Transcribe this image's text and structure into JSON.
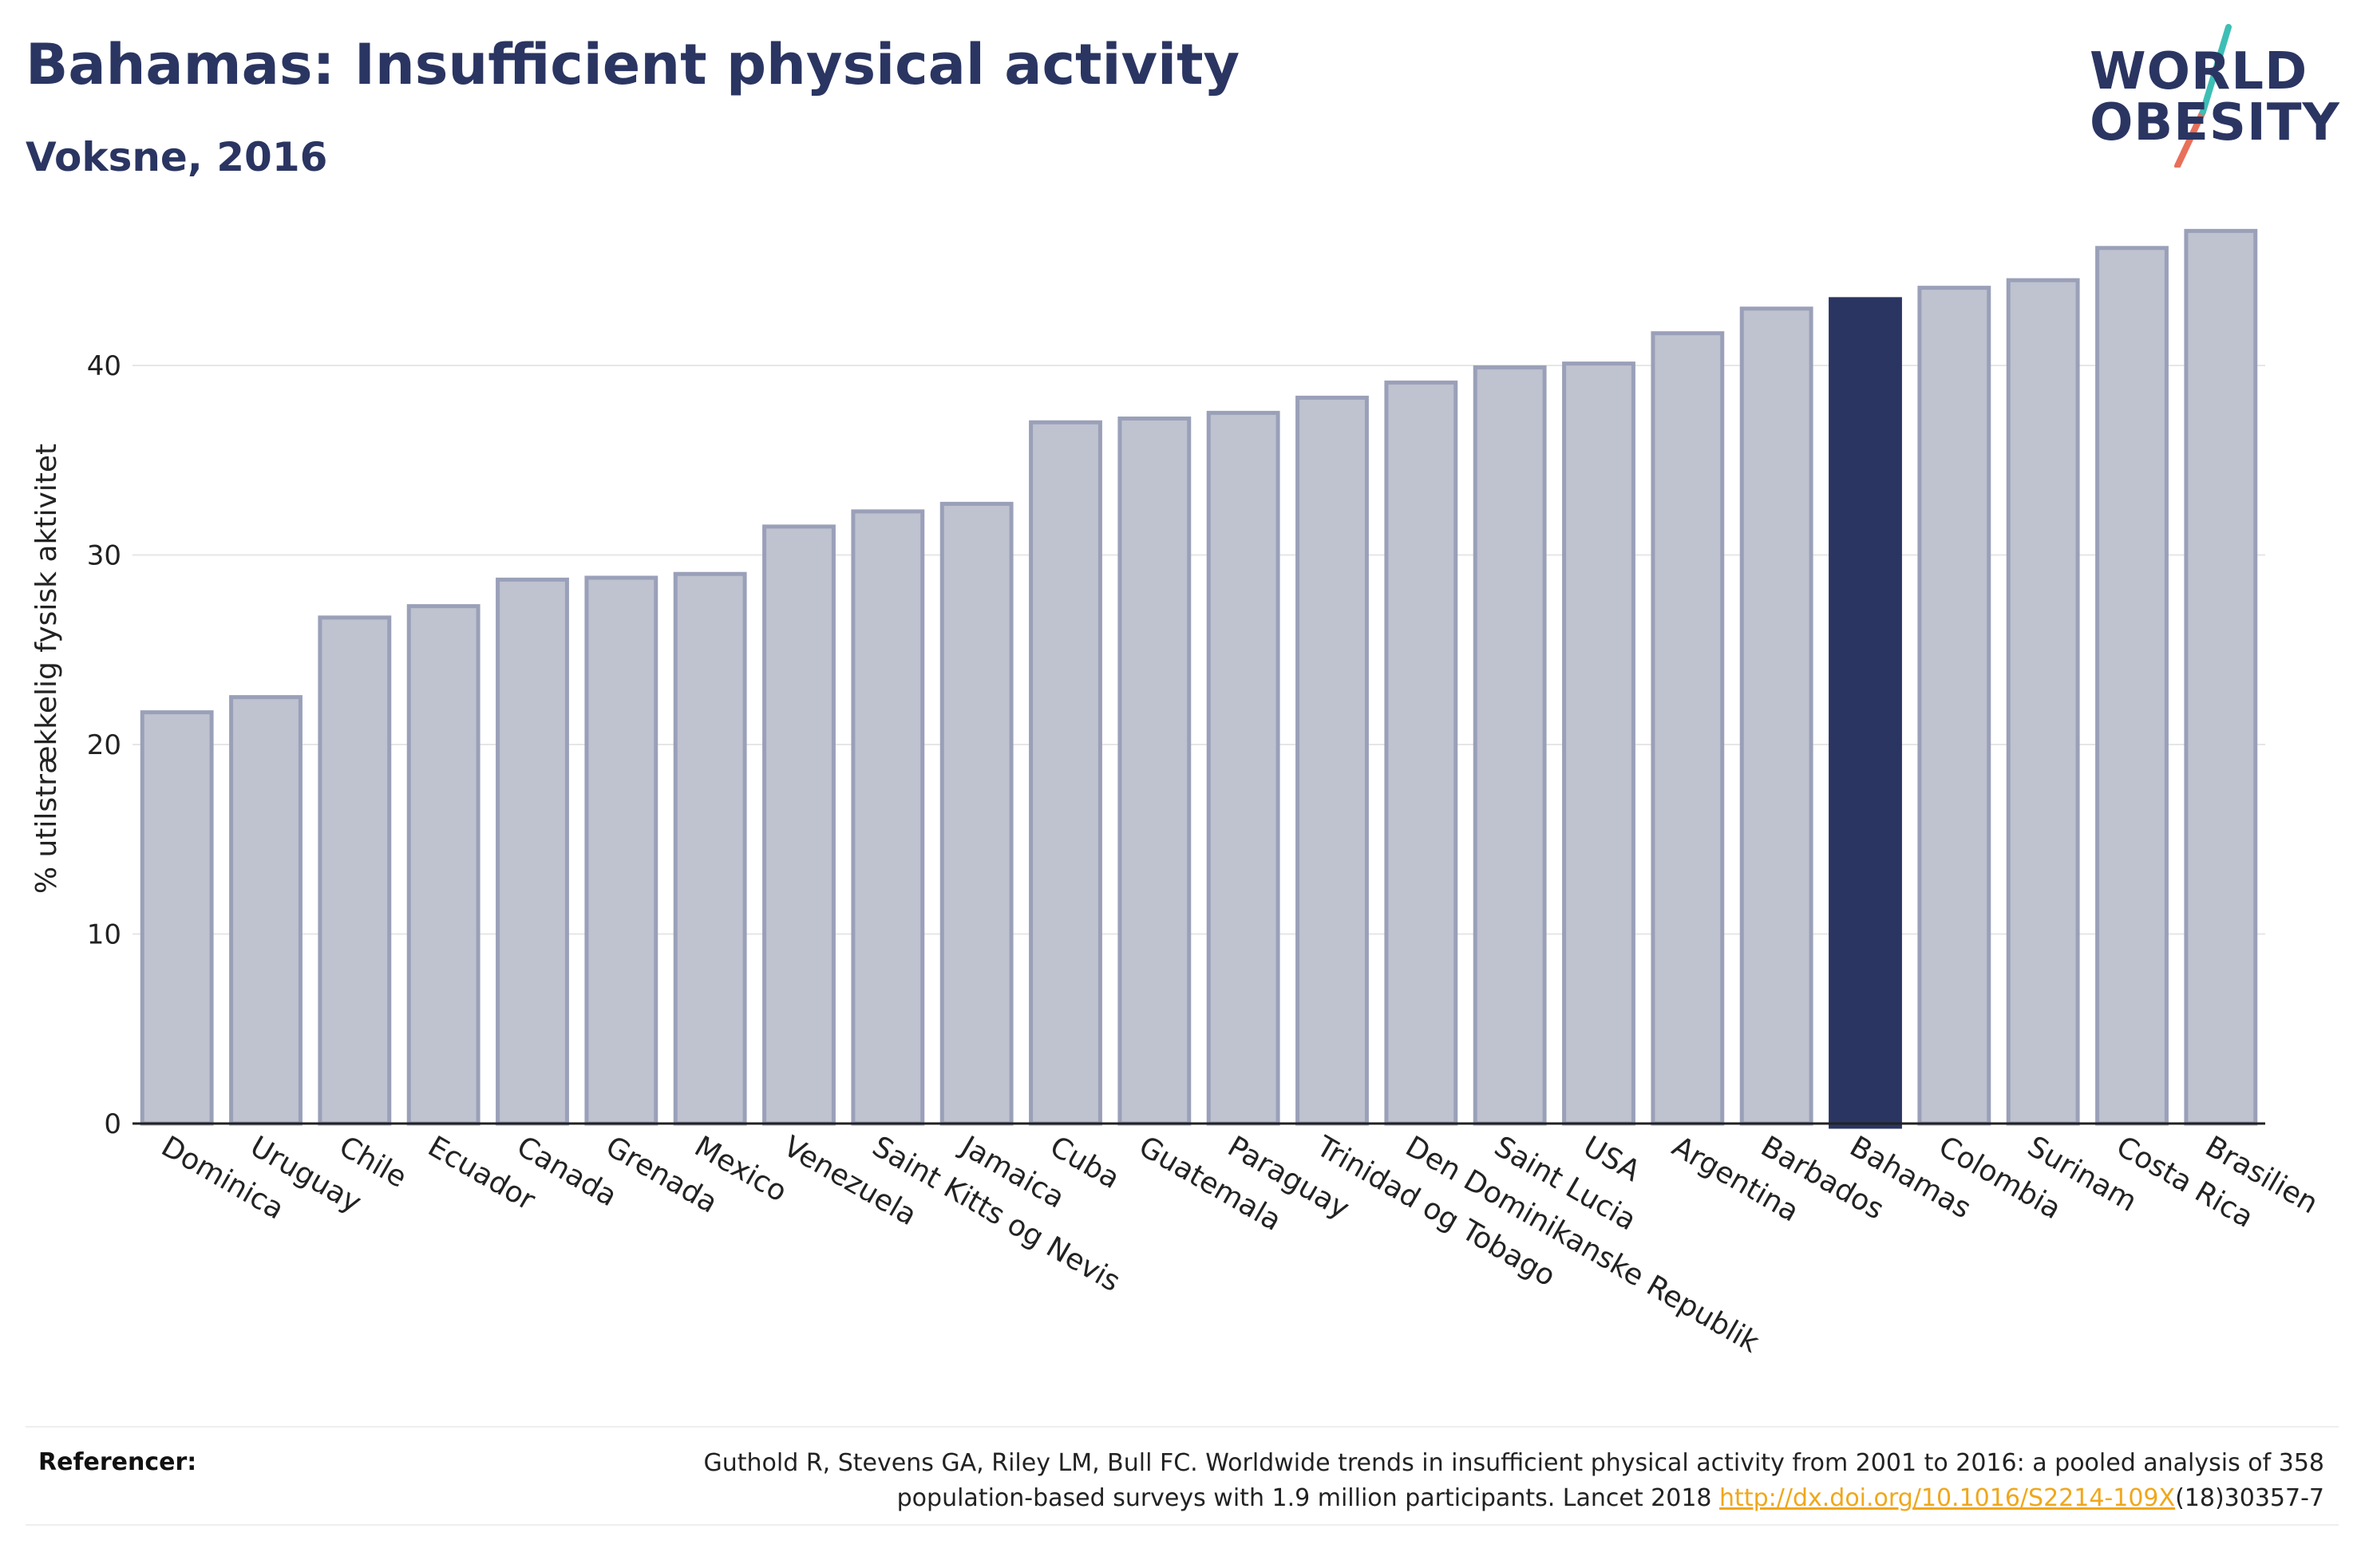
{
  "header": {
    "title": "Bahamas: Insufficient physical activity",
    "subtitle": "Voksne, 2016"
  },
  "logo": {
    "line1": "WORLD",
    "line2": "OBESITY"
  },
  "colors": {
    "highlight": "#2a3562",
    "bar_fill": "#bfc2cf",
    "bar_stroke": "#9aa0b8",
    "grid": "#e6e6e6",
    "axis": "#222222",
    "link": "#f0a71b"
  },
  "chart_data": {
    "type": "bar",
    "ylabel": "% utilstrækkelig fysisk aktivitet",
    "ylim": [
      0,
      48
    ],
    "yticks": [
      0,
      10,
      20,
      30,
      40
    ],
    "grid": true,
    "highlight": "Bahamas",
    "categories": [
      "Dominica",
      "Uruguay",
      "Chile",
      "Ecuador",
      "Canada",
      "Grenada",
      "Mexico",
      "Venezuela",
      "Saint Kitts og Nevis",
      "Jamaica",
      "Cuba",
      "Guatemala",
      "Paraguay",
      "Trinidad og Tobago",
      "Den Dominikanske Republik",
      "Saint Lucia",
      "USA",
      "Argentina",
      "Barbados",
      "Bahamas",
      "Colombia",
      "Surinam",
      "Costa Rica",
      "Brasilien"
    ],
    "values": [
      21.7,
      22.5,
      26.7,
      27.3,
      28.7,
      28.8,
      29.0,
      31.5,
      32.3,
      32.7,
      37.0,
      37.2,
      37.5,
      38.3,
      39.1,
      39.9,
      40.1,
      41.7,
      43.0,
      43.5,
      44.1,
      44.5,
      46.2,
      47.1
    ]
  },
  "footer": {
    "label": "Referencer:",
    "ref_line1": "Guthold R, Stevens GA, Riley LM, Bull FC. Worldwide trends in insufficient physical activity from 2001 to 2016: a pooled analysis of 358",
    "ref_line2_pre": "population-based surveys with 1.9 million participants. Lancet 2018 ",
    "ref_link": "http://dx.doi.org/10.1016/S2214-109X",
    "ref_line2_post": "(18)30357-7"
  }
}
